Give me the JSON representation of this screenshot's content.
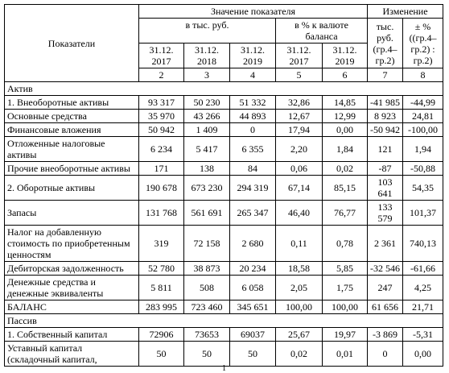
{
  "header": {
    "indicator": "Показатели",
    "value_group": "Значение показателя",
    "change_group": "Изменение",
    "thousand_rub": "в тыс. руб.",
    "percent_of_balance": "в % к валюте баланса",
    "change_abs": "тыс. руб. (гр.4–гр.2)",
    "change_pct": "± % ((гр.4–гр.2) : гр.2)",
    "dates": [
      "31.12. 2017",
      "31.12. 2018",
      "31.12. 2019",
      "31.12. 2017",
      "31.12. 2019"
    ],
    "column_numbers": [
      "2",
      "3",
      "4",
      "5",
      "6",
      "7",
      "8"
    ]
  },
  "table": {
    "rows": [
      [
        "Актив"
      ],
      [
        "1. Внеоборотные активы",
        "93 317",
        "50 230",
        "51 332",
        "32,86",
        "14,85",
        "-41 985",
        "-44,99"
      ],
      [
        "Основные средства",
        "35 970",
        "43 266",
        "44 893",
        "12,67",
        "12,99",
        "8 923",
        "24,81"
      ],
      [
        "Финансовые вложения",
        "50 942",
        "1 409",
        "0",
        "17,94",
        "0,00",
        "-50 942",
        "-100,00"
      ],
      [
        "Отложенные налоговые активы",
        "6 234",
        "5 417",
        "6 355",
        "2,20",
        "1,84",
        "121",
        "1,94"
      ],
      [
        "Прочие внеоборотные активы",
        "171",
        "138",
        "84",
        "0,06",
        "0,02",
        "-87",
        "-50,88"
      ],
      [
        "2. Оборотные активы",
        "190 678",
        "673 230",
        "294 319",
        "67,14",
        "85,15",
        "103 641",
        "54,35"
      ],
      [
        "Запасы",
        "131 768",
        "561 691",
        "265 347",
        "46,40",
        "76,77",
        "133 579",
        "101,37"
      ],
      [
        "Налог на добавленную стоимость по приобретенным ценностям",
        "319",
        "72 158",
        "2 680",
        "0,11",
        "0,78",
        "2 361",
        "740,13"
      ],
      [
        "Дебиторская задолженность",
        "52 780",
        "38 873",
        "20 234",
        "18,58",
        "5,85",
        "-32 546",
        "-61,66"
      ],
      [
        "Денежные средства и денежные эквиваленты",
        "5 811",
        "508",
        "6 058",
        "2,05",
        "1,75",
        "247",
        "4,25"
      ],
      [
        "БАЛАНС",
        "283 995",
        "723 460",
        "345 651",
        "100,00",
        "100,00",
        "61 656",
        "21,71"
      ],
      [
        "Пассив"
      ],
      [
        "1. Собственный капитал",
        "72906",
        "73653",
        "69037",
        "25,67",
        "19,97",
        "-3 869",
        "-5,31"
      ],
      [
        "Уставный капитал (складочный капитал,",
        "50",
        "50",
        "50",
        "0,02",
        "0,01",
        "0",
        "0,00"
      ]
    ]
  },
  "footer": {
    "page_number": "1"
  }
}
